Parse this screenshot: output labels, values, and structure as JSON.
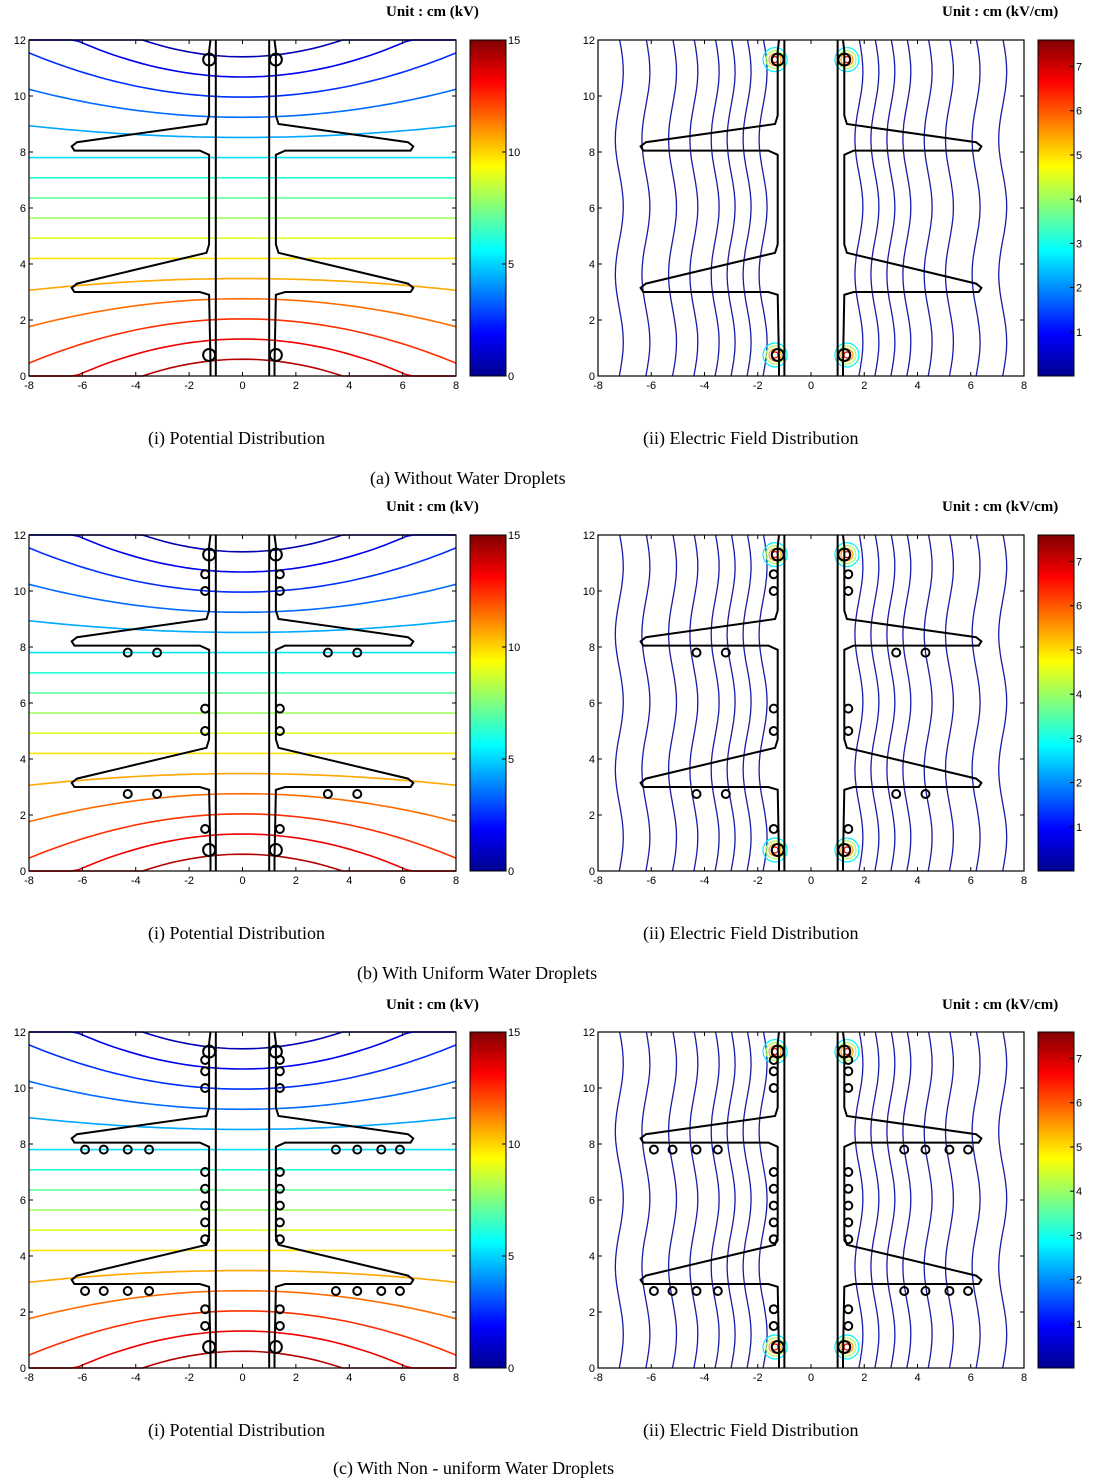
{
  "rows": [
    {
      "id": "a",
      "caption": "(a)  Without Water Droplets",
      "droplets": "none",
      "potential": {
        "unit_label": "Unit : cm  (kV)",
        "caption": "(i) Potential Distribution",
        "colorbar_ticks": [
          "0",
          "5",
          "10",
          "15"
        ]
      },
      "field": {
        "unit_label": "Unit : cm  (kV/cm)",
        "caption": "(ii) Electric Field Distribution",
        "colorbar_ticks": [
          "1",
          "2",
          "3",
          "4",
          "5",
          "6",
          "7"
        ]
      }
    },
    {
      "id": "b",
      "caption": "(b)  With Uniform Water Droplets",
      "droplets": "uniform",
      "potential": {
        "unit_label": "Unit : cm  (kV)",
        "caption": "(i) Potential Distribution",
        "colorbar_ticks": [
          "0",
          "5",
          "10",
          "15"
        ]
      },
      "field": {
        "unit_label": "Unit : cm  (kV/cm)",
        "caption": "(ii) Electric Field Distribution",
        "colorbar_ticks": [
          "1",
          "2",
          "3",
          "4",
          "5",
          "6",
          "7"
        ]
      }
    },
    {
      "id": "c",
      "caption": "(c)  With Non - uniform Water Droplets",
      "droplets": "non-uniform",
      "potential": {
        "unit_label": "Unit : cm  (kV)",
        "caption": "(i) Potential Distribution",
        "colorbar_ticks": [
          "0",
          "5",
          "10",
          "15"
        ]
      },
      "field": {
        "unit_label": "Unit : cm  (kV/cm)",
        "caption": "(ii) Electric Field Distribution",
        "colorbar_ticks": [
          "1",
          "2",
          "3",
          "4",
          "5",
          "6",
          "7"
        ]
      }
    }
  ],
  "x_ticks": [
    "-8",
    "-6",
    "-4",
    "-2",
    "0",
    "2",
    "4",
    "6",
    "8"
  ],
  "y_ticks": [
    "0",
    "2",
    "4",
    "6",
    "8",
    "10",
    "12"
  ],
  "x_range": [
    -8,
    8
  ],
  "y_range": [
    0,
    12
  ],
  "colormap": "jet",
  "colors": {
    "outline": "#000000",
    "field_lines": "#1a1aa8"
  }
}
